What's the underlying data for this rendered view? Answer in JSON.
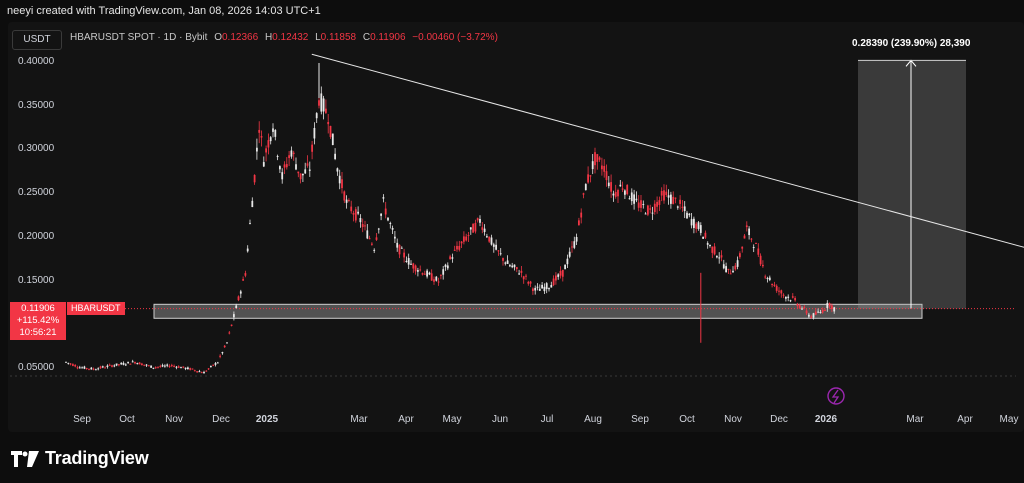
{
  "header": {
    "credit": "neeyi created with TradingView.com, Jan 08, 2026 14:03 UTC+1"
  },
  "toolbar": {
    "currency": "USDT"
  },
  "legend": {
    "symbol": "HBARUSDT SPOT · 1D · Bybit",
    "open_label": "O",
    "open": "0.12366",
    "high_label": "H",
    "high": "0.12432",
    "low_label": "L",
    "low": "0.11858",
    "close_label": "C",
    "close": "0.11906",
    "change": "−0.00460 (−3.72%)"
  },
  "measure_label": "0.28390 (239.90%) 28,390",
  "price_tag": {
    "price": "0.11906",
    "change_pct": "+115.42%",
    "countdown": "10:56:21",
    "symbol": "HBARUSDT"
  },
  "branding": "TradingView",
  "colors": {
    "up": "#e8e8e8",
    "down": "#f23645",
    "background": "#131313",
    "accent": "#f23645"
  },
  "chart_data": {
    "type": "candlestick",
    "title": "HBARUSDT SPOT · 1D · Bybit",
    "y_ticks": [
      "0.40000",
      "0.35000",
      "0.30000",
      "0.25000",
      "0.20000",
      "0.15000",
      "0.05000"
    ],
    "x_ticks": [
      "Sep",
      "Oct",
      "Nov",
      "Dec",
      "2025",
      "Mar",
      "Apr",
      "May",
      "Jun",
      "Jul",
      "Aug",
      "Sep",
      "Oct",
      "Nov",
      "Dec",
      "2026",
      "Mar",
      "Apr",
      "May"
    ],
    "ylim": [
      0.04,
      0.41
    ],
    "grid": false,
    "close_series": [
      {
        "t": 0,
        "c": 0.058
      },
      {
        "t": 6,
        "c": 0.052
      },
      {
        "t": 12,
        "c": 0.05
      },
      {
        "t": 20,
        "c": 0.054
      },
      {
        "t": 30,
        "c": 0.058
      },
      {
        "t": 38,
        "c": 0.052
      },
      {
        "t": 46,
        "c": 0.054
      },
      {
        "t": 54,
        "c": 0.05
      },
      {
        "t": 60,
        "c": 0.046
      },
      {
        "t": 66,
        "c": 0.058
      },
      {
        "t": 70,
        "c": 0.08
      },
      {
        "t": 74,
        "c": 0.12
      },
      {
        "t": 78,
        "c": 0.16
      },
      {
        "t": 82,
        "c": 0.27
      },
      {
        "t": 84,
        "c": 0.33
      },
      {
        "t": 86,
        "c": 0.29
      },
      {
        "t": 90,
        "c": 0.33
      },
      {
        "t": 94,
        "c": 0.27
      },
      {
        "t": 98,
        "c": 0.3
      },
      {
        "t": 102,
        "c": 0.27
      },
      {
        "t": 106,
        "c": 0.28
      },
      {
        "t": 110,
        "c": 0.36
      },
      {
        "t": 114,
        "c": 0.34
      },
      {
        "t": 118,
        "c": 0.28
      },
      {
        "t": 122,
        "c": 0.24
      },
      {
        "t": 128,
        "c": 0.22
      },
      {
        "t": 134,
        "c": 0.19
      },
      {
        "t": 138,
        "c": 0.24
      },
      {
        "t": 144,
        "c": 0.19
      },
      {
        "t": 150,
        "c": 0.17
      },
      {
        "t": 156,
        "c": 0.16
      },
      {
        "t": 162,
        "c": 0.15
      },
      {
        "t": 168,
        "c": 0.18
      },
      {
        "t": 174,
        "c": 0.2
      },
      {
        "t": 180,
        "c": 0.22
      },
      {
        "t": 186,
        "c": 0.19
      },
      {
        "t": 192,
        "c": 0.17
      },
      {
        "t": 198,
        "c": 0.16
      },
      {
        "t": 204,
        "c": 0.14
      },
      {
        "t": 210,
        "c": 0.145
      },
      {
        "t": 216,
        "c": 0.16
      },
      {
        "t": 222,
        "c": 0.2
      },
      {
        "t": 226,
        "c": 0.26
      },
      {
        "t": 230,
        "c": 0.29
      },
      {
        "t": 234,
        "c": 0.28
      },
      {
        "t": 238,
        "c": 0.25
      },
      {
        "t": 242,
        "c": 0.26
      },
      {
        "t": 248,
        "c": 0.24
      },
      {
        "t": 254,
        "c": 0.23
      },
      {
        "t": 260,
        "c": 0.25
      },
      {
        "t": 266,
        "c": 0.24
      },
      {
        "t": 272,
        "c": 0.22
      },
      {
        "t": 276,
        "c": 0.21
      },
      {
        "t": 280,
        "c": 0.19
      },
      {
        "t": 284,
        "c": 0.18
      },
      {
        "t": 288,
        "c": 0.16
      },
      {
        "t": 292,
        "c": 0.17
      },
      {
        "t": 296,
        "c": 0.21
      },
      {
        "t": 300,
        "c": 0.19
      },
      {
        "t": 304,
        "c": 0.16
      },
      {
        "t": 308,
        "c": 0.145
      },
      {
        "t": 312,
        "c": 0.135
      },
      {
        "t": 316,
        "c": 0.13
      },
      {
        "t": 320,
        "c": 0.12
      },
      {
        "t": 324,
        "c": 0.11
      },
      {
        "t": 328,
        "c": 0.115
      },
      {
        "t": 332,
        "c": 0.125
      },
      {
        "t": 334,
        "c": 0.119
      }
    ],
    "trendline": {
      "from": {
        "t": 96,
        "y": 0.41
      },
      "to": {
        "t": 400,
        "y": 0.17
      }
    },
    "support_zone": {
      "top": 0.124,
      "bottom": 0.108
    },
    "projection": {
      "from": 0.119,
      "to": 0.403,
      "change": "0.28390 (239.90%) 28,390"
    },
    "last_price": 0.11906
  }
}
